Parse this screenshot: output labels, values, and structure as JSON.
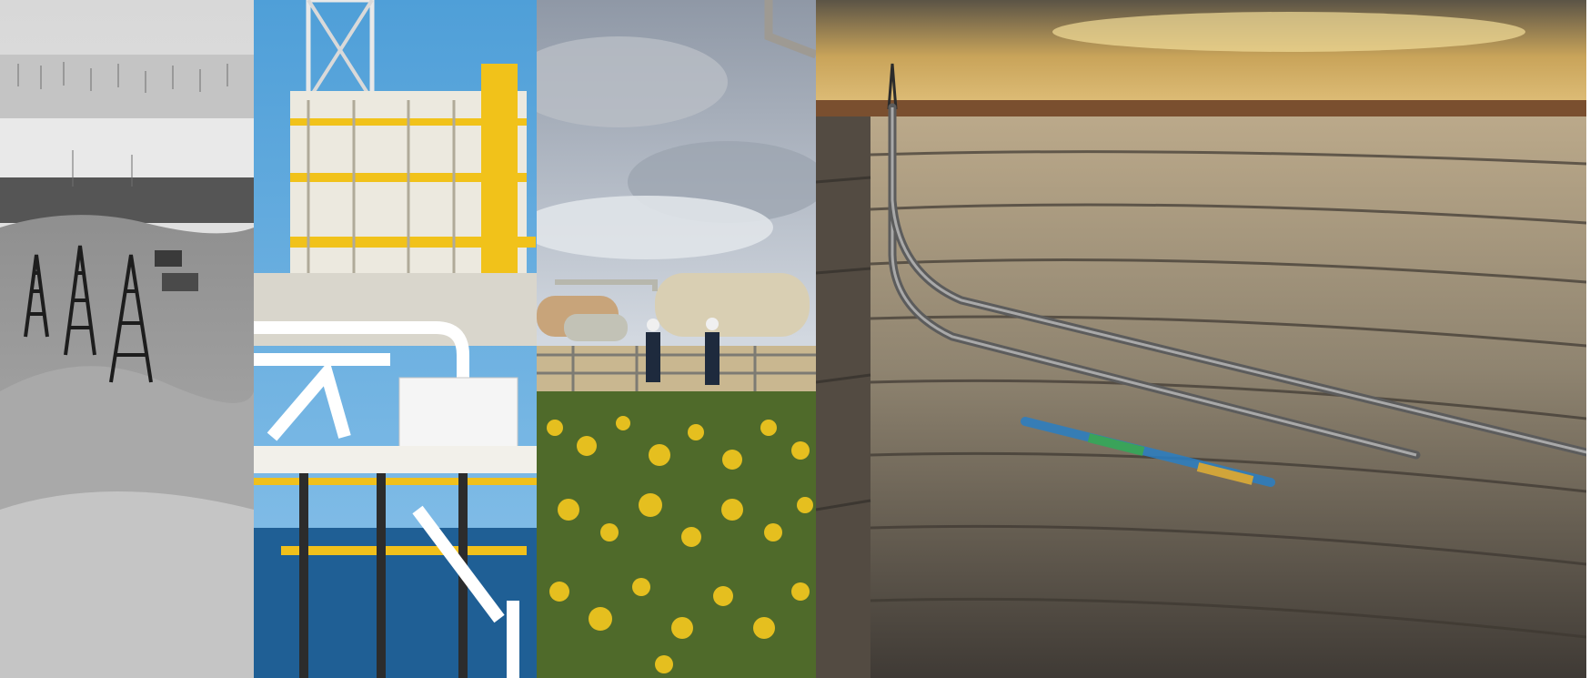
{
  "collage": {
    "panels": [
      {
        "subject": "historic-oil-field-derricks",
        "palette": [
          "#e6e6e6",
          "#8a8a8a",
          "#2a2a2a"
        ]
      },
      {
        "subject": "offshore-platform",
        "palette": [
          "#56a6de",
          "#f4f1e6",
          "#f2c318",
          "#1b3f64"
        ]
      },
      {
        "subject": "onshore-gas-facility-with-wildflowers",
        "palette": [
          "#cfd6df",
          "#c9ba94",
          "#e7c224",
          "#4b6b27"
        ]
      },
      {
        "subject": "horizontal-well-cross-section",
        "palette": [
          "#d8b46a",
          "#8f7f66",
          "#3c3631",
          "#2a7fc4"
        ]
      }
    ]
  }
}
